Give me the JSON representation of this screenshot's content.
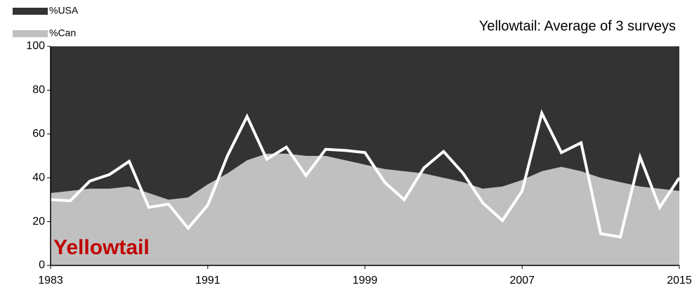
{
  "chart_data": {
    "type": "area",
    "title": "Yellowtail: Average of 3 surveys",
    "annotation": "Yellowtail",
    "x": [
      1983,
      1984,
      1985,
      1986,
      1987,
      1988,
      1989,
      1990,
      1991,
      1992,
      1993,
      1994,
      1995,
      1996,
      1997,
      1998,
      1999,
      2000,
      2001,
      2002,
      2003,
      2004,
      2005,
      2006,
      2007,
      2008,
      2009,
      2010,
      2011,
      2012,
      2013,
      2014,
      2015
    ],
    "series": [
      {
        "name": "%USA",
        "color": "#333333",
        "type": "area",
        "values": [
          67,
          66,
          65,
          65,
          64,
          67,
          70,
          69,
          63,
          58,
          52,
          49,
          49,
          50,
          50,
          52,
          54,
          56,
          57,
          58,
          60,
          62,
          65,
          64,
          61,
          57,
          55,
          57,
          60,
          62,
          64,
          65,
          66
        ]
      },
      {
        "name": "%Can",
        "color": "#c0c0c0",
        "type": "area",
        "values": [
          33,
          34,
          35,
          35,
          36,
          33,
          30,
          31,
          37,
          42,
          48,
          51,
          51,
          50,
          50,
          48,
          46,
          44,
          43,
          42,
          40,
          38,
          35,
          36,
          39,
          43,
          45,
          43,
          40,
          38,
          36,
          35,
          34
        ]
      },
      {
        "color": "#ffffff",
        "type": "line",
        "values": [
          30,
          29.5,
          38.5,
          41.5,
          47.5,
          26.5,
          28,
          17,
          27.5,
          50,
          68,
          48.5,
          54,
          41,
          53,
          52.5,
          51.5,
          38,
          30,
          44.5,
          52,
          42,
          28.5,
          20.5,
          34,
          69.5,
          51.5,
          56,
          14.5,
          13,
          49.5,
          26.5,
          40
        ]
      }
    ],
    "xlim": [
      1983,
      2015
    ],
    "xticks": [
      1983,
      1991,
      1999,
      2007,
      2015
    ],
    "ylim": [
      0,
      100
    ],
    "yticks": [
      0,
      20,
      40,
      60,
      80,
      100
    ]
  }
}
